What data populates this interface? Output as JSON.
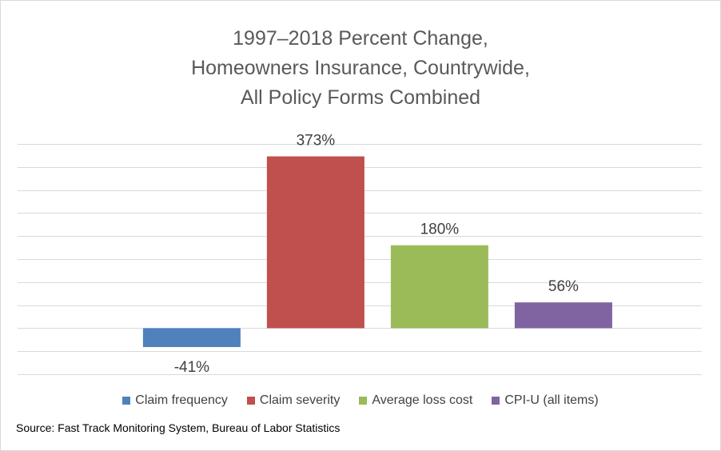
{
  "chart_data": {
    "type": "bar",
    "title_lines": [
      "1997–2018 Percent Change,",
      "Homeowners Insurance, Countrywide,",
      "All Policy Forms Combined"
    ],
    "categories": [
      "Claim frequency",
      "Claim severity",
      "Average loss cost",
      "CPI-U (all items)"
    ],
    "values": [
      -41,
      373,
      180,
      56
    ],
    "data_labels": [
      "-41%",
      "373%",
      "180%",
      "56%"
    ],
    "colors": [
      "#4f81bd",
      "#c0504d",
      "#9bbb59",
      "#8064a2"
    ],
    "ylim": [
      -100,
      400
    ],
    "grid": true,
    "legend_position": "bottom",
    "source": "Source: Fast Track Monitoring System, Bureau of Labor Statistics"
  }
}
